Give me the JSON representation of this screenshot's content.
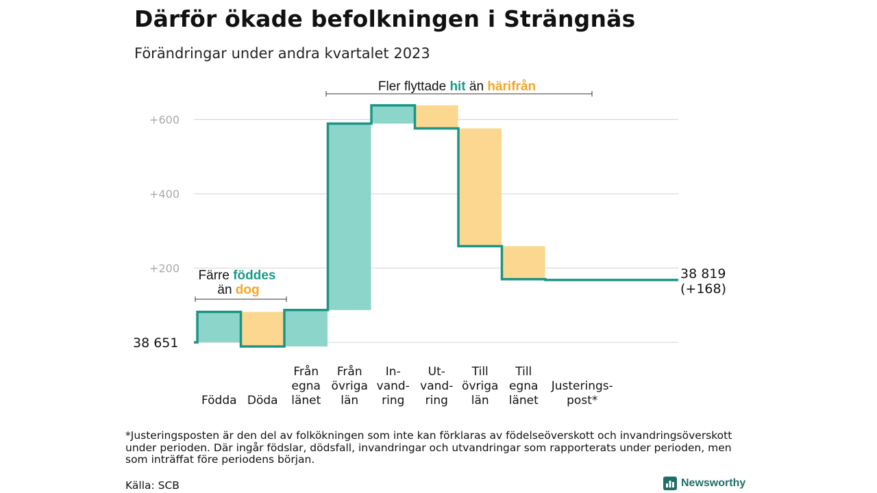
{
  "title": "Därför ökade befolkningen i Strängnäs",
  "subtitle": "Förändringar under andra kvartalet 2023",
  "footnote": "*Justeringsposten är den del av folkökningen som inte kan förklaras av födelseöverskott och invandringsöverskott under perioden. Där ingår födslar, dödsfall, invandringar och utvandringar som rapporterats under perioden, men som inträffat före periodens början.",
  "source": "Källa: SCB",
  "brand": "Newsworthy",
  "colors": {
    "increase": "#8cd5cb",
    "decrease": "#fbd78f",
    "line": "#1c9485",
    "teal_text": "#1a9a88",
    "orange_text": "#f5a623",
    "grid": "#d9d9d9",
    "tick_text": "#a9a9a9"
  },
  "chart_data": {
    "type": "waterfall",
    "start_value": 38651,
    "start_label": "38  651",
    "end_label_line1": "38 819",
    "end_label_line2": "(+168)",
    "y_unit": "change from 38 651",
    "ylim": [
      -20,
      640
    ],
    "y_ticks": [
      {
        "value": 600,
        "label": "+600"
      },
      {
        "value": 400,
        "label": "+400"
      },
      {
        "value": 200,
        "label": "+200"
      }
    ],
    "steps": [
      {
        "label": [
          "Födda"
        ],
        "value": 82
      },
      {
        "label": [
          "Döda"
        ],
        "value": -93
      },
      {
        "label": [
          "Från",
          "egna",
          "länet"
        ],
        "value": 98
      },
      {
        "label": [
          "Från",
          "övriga",
          "län"
        ],
        "value": 502
      },
      {
        "label": [
          "In-",
          "vand-",
          "ring"
        ],
        "value": 49
      },
      {
        "label": [
          "Ut-",
          "vand-",
          "ring"
        ],
        "value": -62
      },
      {
        "label": [
          "Till",
          "övriga",
          "län"
        ],
        "value": -317
      },
      {
        "label": [
          "Till",
          "egna",
          "länet"
        ],
        "value": -89
      },
      {
        "label": [
          "Justerings-",
          "post*"
        ],
        "value": -2
      }
    ],
    "annotations": {
      "births_deaths": {
        "line1_prefix": "Färre ",
        "line1_highlight": "föddes",
        "line2_prefix": "än ",
        "line2_highlight": "dog"
      },
      "migration": {
        "prefix": "Fler flyttade ",
        "highlight1": "hit",
        "middle": " än ",
        "highlight2": "härifrån"
      }
    }
  }
}
